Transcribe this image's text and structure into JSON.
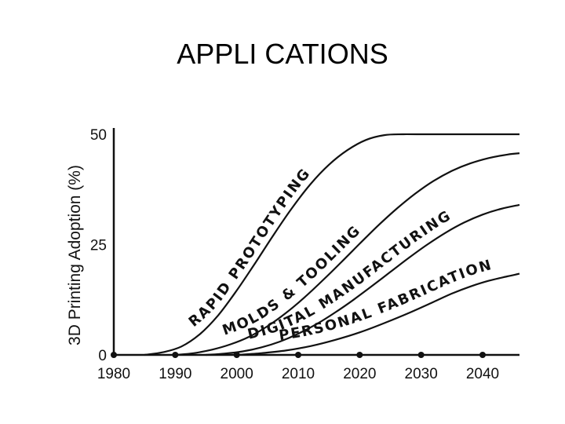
{
  "slide": {
    "title": "APPLI CATIONS"
  },
  "chart_data": {
    "type": "line",
    "title": "",
    "xlabel": "",
    "ylabel": "3D Printing Adoption (%)",
    "xlim": [
      1980,
      2046
    ],
    "ylim": [
      0,
      50
    ],
    "x_ticks": [
      1980,
      1990,
      2000,
      2010,
      2020,
      2030,
      2040
    ],
    "y_ticks": [
      0,
      25,
      50
    ],
    "grid": false,
    "series": [
      {
        "name": "RAPID PROTOTYPING",
        "x": [
          1985,
          1988,
          1991,
          1994,
          1997,
          2000,
          2003,
          2006,
          2009,
          2012,
          2015,
          2018,
          2021,
          2024,
          2027,
          2030,
          2046
        ],
        "y": [
          0,
          0.6,
          1.9,
          4.7,
          9.0,
          14.6,
          20.8,
          27.2,
          33.3,
          38.7,
          43.1,
          46.4,
          48.7,
          49.8,
          50,
          50,
          50
        ]
      },
      {
        "name": "MOLDS & TOOLING",
        "x": [
          1990,
          1993,
          1996,
          1999,
          2002,
          2005,
          2008,
          2011,
          2014,
          2017,
          2020,
          2023,
          2026,
          2029,
          2032,
          2035,
          2038,
          2041,
          2044,
          2046
        ],
        "y": [
          0,
          0.4,
          1.2,
          2.4,
          4.1,
          6.5,
          9.5,
          13.0,
          16.9,
          21.0,
          25.2,
          29.3,
          33.1,
          36.5,
          39.4,
          41.7,
          43.4,
          44.6,
          45.4,
          45.7
        ]
      },
      {
        "name": "DIGITAL MANUFACTURING",
        "x": [
          1995,
          1998,
          2001,
          2004,
          2007,
          2010,
          2013,
          2016,
          2019,
          2022,
          2025,
          2028,
          2031,
          2034,
          2037,
          2040,
          2043,
          2046
        ],
        "y": [
          0,
          0.3,
          0.8,
          1.7,
          3.0,
          4.8,
          7.0,
          9.6,
          12.5,
          15.6,
          18.8,
          22.0,
          25.0,
          27.7,
          30.0,
          31.8,
          33.1,
          34.0
        ]
      },
      {
        "name": "PERSONAL FABRICATION",
        "x": [
          2000,
          2004,
          2008,
          2012,
          2016,
          2020,
          2024,
          2028,
          2032,
          2035,
          2038,
          2041,
          2044,
          2046
        ],
        "y": [
          0,
          0.4,
          1.0,
          2.0,
          3.4,
          5.1,
          7.2,
          9.5,
          12.0,
          13.9,
          15.5,
          16.8,
          17.8,
          18.4
        ]
      }
    ]
  }
}
